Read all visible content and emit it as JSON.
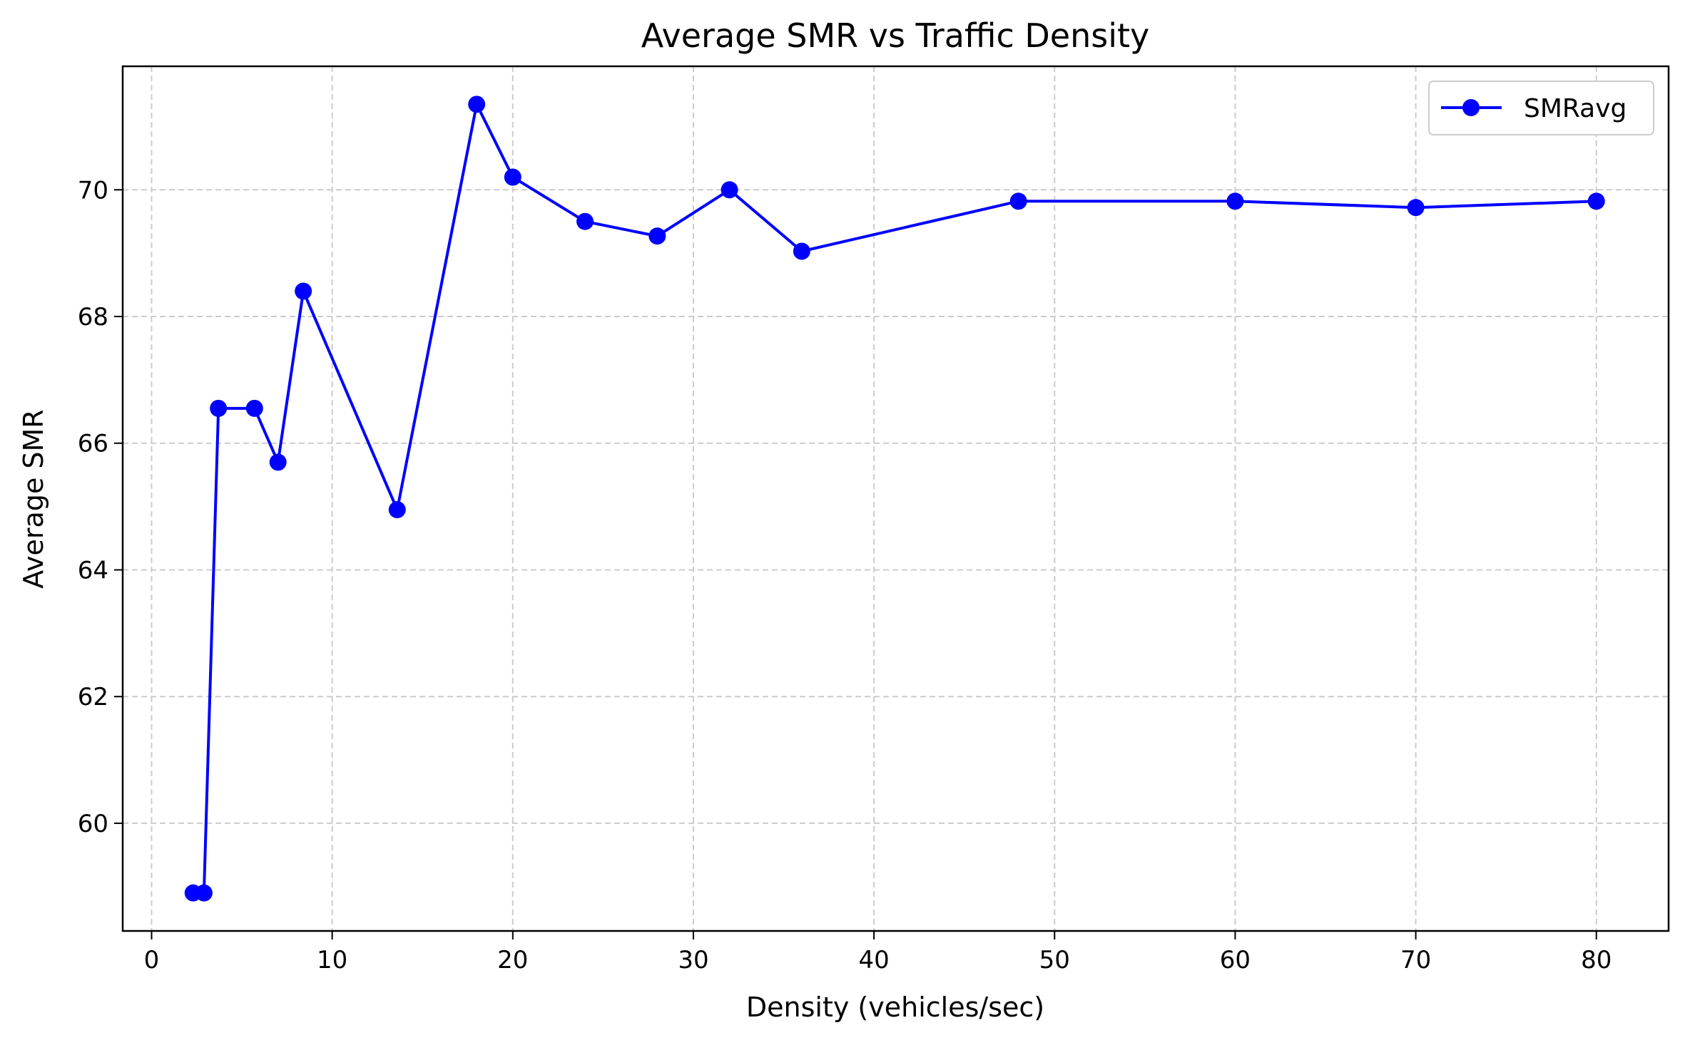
{
  "chart_data": {
    "type": "line",
    "title": "Average SMR vs Traffic Density",
    "xlabel": "Density (vehicles/sec)",
    "ylabel": "Average SMR",
    "xlim": [
      -1.6,
      84.0
    ],
    "ylim": [
      58.3,
      71.95
    ],
    "xticks": [
      0,
      10,
      20,
      30,
      40,
      50,
      60,
      70,
      80
    ],
    "yticks": [
      60,
      62,
      64,
      66,
      68,
      70
    ],
    "grid": true,
    "legend_position": "top-right",
    "series": [
      {
        "name": "SMRavg",
        "color": "#0000ff",
        "marker": "circle",
        "x": [
          2.3,
          2.9,
          3.7,
          5.7,
          7.0,
          8.4,
          13.6,
          18.0,
          20.0,
          24.0,
          28.0,
          32.0,
          36.0,
          48.0,
          60.0,
          70.0,
          80.0
        ],
        "y": [
          58.9,
          58.9,
          66.55,
          66.55,
          65.7,
          68.4,
          64.95,
          71.35,
          70.2,
          69.5,
          69.27,
          70.0,
          69.03,
          69.82,
          69.82,
          69.72,
          69.82
        ]
      }
    ]
  }
}
